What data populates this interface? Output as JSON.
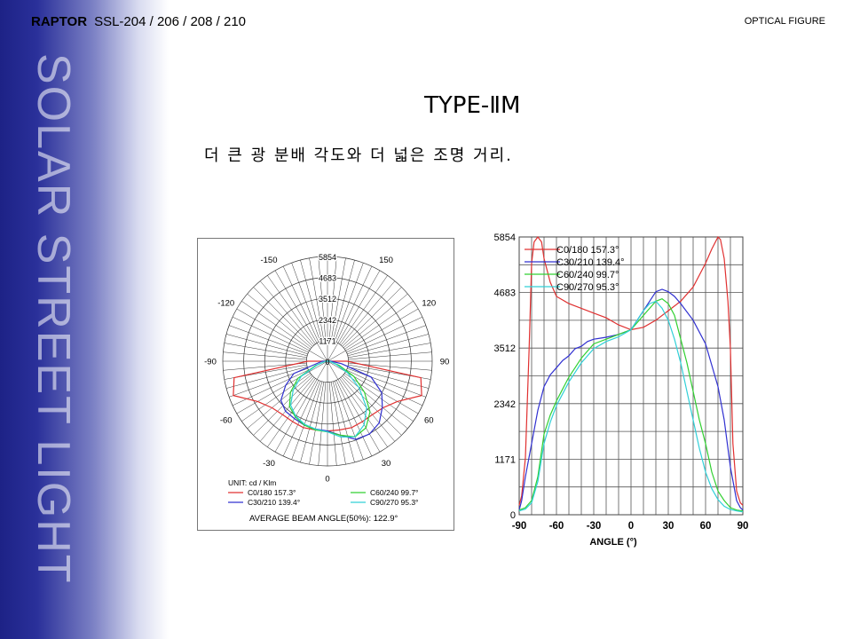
{
  "header": {
    "brand": "RAPTOR",
    "model": "SSL-204 / 206 / 208 / 210",
    "section": "OPTICAL FIGURE"
  },
  "sidebar": {
    "vertical_text": "SOLAR STREET LIGHT"
  },
  "main": {
    "title": "TYPE-ⅡM",
    "subtitle": "더 큰 광 분배 각도와 더 넓은 조명 거리."
  },
  "chart_data": [
    {
      "type": "polar",
      "radial_ticks": [
        1171,
        2342,
        3512,
        4683,
        5854
      ],
      "center_label": "0",
      "angle_labels": [
        "-150",
        "150",
        "-120",
        "120",
        "-90",
        "90",
        "-60",
        "60",
        "-30",
        "30",
        "0"
      ],
      "unit": "UNIT: cd / Klm",
      "footer": "AVERAGE BEAM ANGLE(50%): 122.9°",
      "rmax": 5854,
      "series": [
        {
          "name": "C0/180 157.3°",
          "color": "#e03030",
          "values": [
            [
              -90,
              1100
            ],
            [
              -80,
              5300
            ],
            [
              -70,
              5600
            ],
            [
              -60,
              4500
            ],
            [
              -50,
              4050
            ],
            [
              -40,
              3900
            ],
            [
              -30,
              3900
            ],
            [
              -20,
              3950
            ],
            [
              -10,
              3900
            ],
            [
              0,
              3900
            ],
            [
              10,
              3900
            ],
            [
              20,
              3950
            ],
            [
              30,
              3900
            ],
            [
              40,
              3900
            ],
            [
              50,
              4050
            ],
            [
              60,
              4500
            ],
            [
              70,
              5600
            ],
            [
              80,
              5300
            ],
            [
              90,
              1100
            ]
          ]
        },
        {
          "name": "C30/210 139.4°",
          "color": "#3030d0",
          "values": [
            [
              -90,
              300
            ],
            [
              -70,
              2000
            ],
            [
              -60,
              2700
            ],
            [
              -50,
              3400
            ],
            [
              -40,
              3650
            ],
            [
              -30,
              3700
            ],
            [
              -20,
              3800
            ],
            [
              -10,
              3850
            ],
            [
              0,
              3900
            ],
            [
              10,
              4200
            ],
            [
              20,
              4650
            ],
            [
              30,
              4700
            ],
            [
              40,
              4500
            ],
            [
              50,
              4000
            ],
            [
              60,
              3500
            ],
            [
              70,
              2600
            ],
            [
              80,
              800
            ],
            [
              90,
              200
            ]
          ]
        },
        {
          "name": "C60/240 99.7°",
          "color": "#30d030",
          "values": [
            [
              -90,
              100
            ],
            [
              -70,
              700
            ],
            [
              -60,
              1900
            ],
            [
              -50,
              2700
            ],
            [
              -40,
              3300
            ],
            [
              -30,
              3600
            ],
            [
              -20,
              3800
            ],
            [
              -10,
              3900
            ],
            [
              0,
              3950
            ],
            [
              10,
              4200
            ],
            [
              20,
              4500
            ],
            [
              30,
              4300
            ],
            [
              40,
              3700
            ],
            [
              50,
              2700
            ],
            [
              60,
              1700
            ],
            [
              70,
              700
            ],
            [
              90,
              100
            ]
          ]
        },
        {
          "name": "C90/270 95.3°",
          "color": "#30d0d8",
          "values": [
            [
              -90,
              100
            ],
            [
              -70,
              600
            ],
            [
              -60,
              1700
            ],
            [
              -50,
              2500
            ],
            [
              -40,
              3200
            ],
            [
              -30,
              3550
            ],
            [
              -20,
              3750
            ],
            [
              -10,
              3850
            ],
            [
              0,
              3950
            ],
            [
              10,
              4300
            ],
            [
              20,
              4500
            ],
            [
              30,
              4100
            ],
            [
              40,
              3400
            ],
            [
              50,
              2300
            ],
            [
              60,
              1300
            ],
            [
              70,
              500
            ],
            [
              90,
              100
            ]
          ]
        }
      ]
    },
    {
      "type": "line",
      "yticks": [
        0,
        1171,
        2342,
        3512,
        4683,
        5854
      ],
      "xticks": [
        -90,
        -60,
        -30,
        0,
        30,
        60,
        90
      ],
      "xlabel": "ANGLE (°)",
      "xlim": [
        -90,
        90
      ],
      "ylim": [
        0,
        5854
      ],
      "series": [
        {
          "name": "C0/180 157.3°",
          "color": "#e03030",
          "x": [
            -90,
            -88,
            -85,
            -82,
            -80,
            -78,
            -75,
            -72,
            -70,
            -65,
            -60,
            -50,
            -40,
            -30,
            -20,
            -10,
            0,
            10,
            20,
            30,
            40,
            50,
            60,
            65,
            70,
            72,
            75,
            78,
            80,
            82,
            85,
            88,
            90
          ],
          "y": [
            200,
            400,
            1200,
            3500,
            5300,
            5750,
            5854,
            5750,
            5400,
            4900,
            4600,
            4450,
            4350,
            4250,
            4150,
            4000,
            3900,
            3950,
            4100,
            4300,
            4500,
            4800,
            5300,
            5600,
            5854,
            5800,
            5400,
            4500,
            3500,
            1500,
            500,
            250,
            200
          ]
        },
        {
          "name": "C30/210 139.4°",
          "color": "#3030d0",
          "x": [
            -90,
            -88,
            -85,
            -80,
            -75,
            -70,
            -65,
            -60,
            -55,
            -50,
            -45,
            -40,
            -35,
            -30,
            -25,
            -20,
            -10,
            0,
            10,
            20,
            25,
            30,
            35,
            40,
            50,
            60,
            70,
            75,
            80,
            85,
            88,
            90
          ],
          "y": [
            100,
            300,
            800,
            1500,
            2200,
            2700,
            2950,
            3100,
            3250,
            3350,
            3500,
            3550,
            3650,
            3700,
            3720,
            3740,
            3800,
            3900,
            4300,
            4700,
            4750,
            4700,
            4600,
            4450,
            4100,
            3600,
            2700,
            2000,
            1000,
            300,
            150,
            100
          ]
        },
        {
          "name": "C60/240 99.7°",
          "color": "#30d030",
          "x": [
            -90,
            -85,
            -80,
            -75,
            -70,
            -65,
            -60,
            -55,
            -50,
            -45,
            -40,
            -35,
            -30,
            -20,
            -10,
            0,
            10,
            20,
            25,
            30,
            35,
            40,
            45,
            50,
            55,
            60,
            65,
            70,
            75,
            80,
            85,
            90
          ],
          "y": [
            100,
            150,
            300,
            800,
            1700,
            2100,
            2400,
            2650,
            2900,
            3100,
            3300,
            3450,
            3600,
            3700,
            3800,
            3900,
            4200,
            4500,
            4550,
            4450,
            4200,
            3700,
            3200,
            2600,
            2000,
            1500,
            900,
            500,
            300,
            150,
            100,
            80
          ]
        },
        {
          "name": "C90/270 95.3°",
          "color": "#30d0d8",
          "x": [
            -90,
            -85,
            -80,
            -75,
            -70,
            -65,
            -60,
            -55,
            -50,
            -45,
            -40,
            -35,
            -30,
            -20,
            -10,
            0,
            10,
            15,
            20,
            25,
            30,
            35,
            40,
            45,
            50,
            55,
            60,
            65,
            70,
            75,
            80,
            85,
            90
          ],
          "y": [
            80,
            120,
            250,
            700,
            1500,
            1950,
            2300,
            2550,
            2800,
            3000,
            3200,
            3350,
            3500,
            3650,
            3750,
            3900,
            4300,
            4450,
            4500,
            4350,
            4100,
            3700,
            3200,
            2600,
            2000,
            1400,
            900,
            550,
            320,
            180,
            110,
            80,
            60
          ]
        }
      ]
    }
  ]
}
